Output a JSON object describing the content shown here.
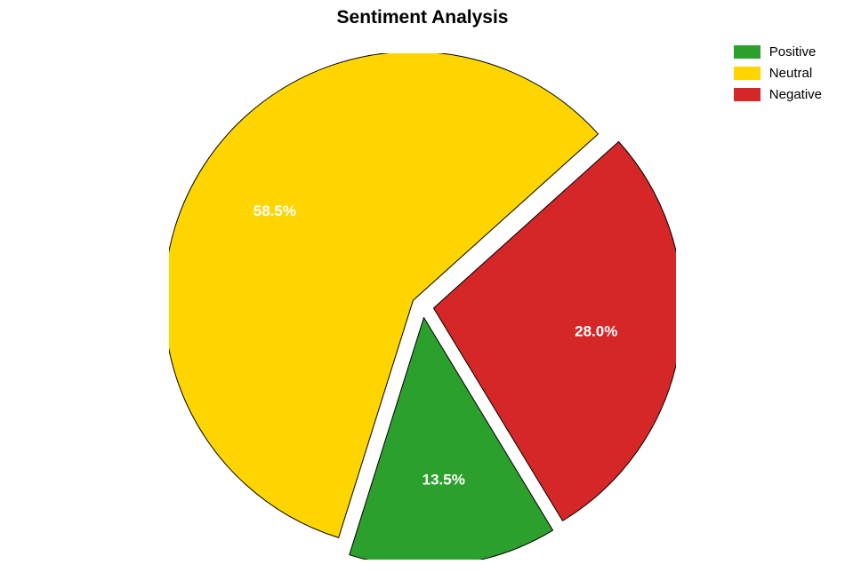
{
  "chart": {
    "type": "pie",
    "title": "Sentiment Analysis",
    "title_fontsize": 21,
    "title_fontweight": "bold",
    "background_color": "#ffffff",
    "explode_offset": 0.045,
    "start_angle_deg": 42,
    "direction": "clockwise",
    "radius": 280,
    "label_radius_factor": 0.66,
    "label_fontsize": 17,
    "label_color": "#ffffff",
    "stroke_color": "#000000",
    "stroke_width": 1,
    "slices": [
      {
        "key": "negative",
        "label": "Negative",
        "value": 28.0,
        "display": "28.0%",
        "color": "#d62728"
      },
      {
        "key": "positive",
        "label": "Positive",
        "value": 13.5,
        "display": "13.5%",
        "color": "#2ca02c"
      },
      {
        "key": "neutral",
        "label": "Neutral",
        "value": 58.5,
        "display": "58.5%",
        "color": "#ffd500"
      }
    ],
    "legend": {
      "position": "top-right",
      "swatch_width": 30,
      "swatch_height": 15,
      "fontsize": 15,
      "items": [
        {
          "label": "Positive",
          "color": "#2ca02c"
        },
        {
          "label": "Neutral",
          "color": "#ffd500"
        },
        {
          "label": "Negative",
          "color": "#d62728"
        }
      ]
    }
  }
}
